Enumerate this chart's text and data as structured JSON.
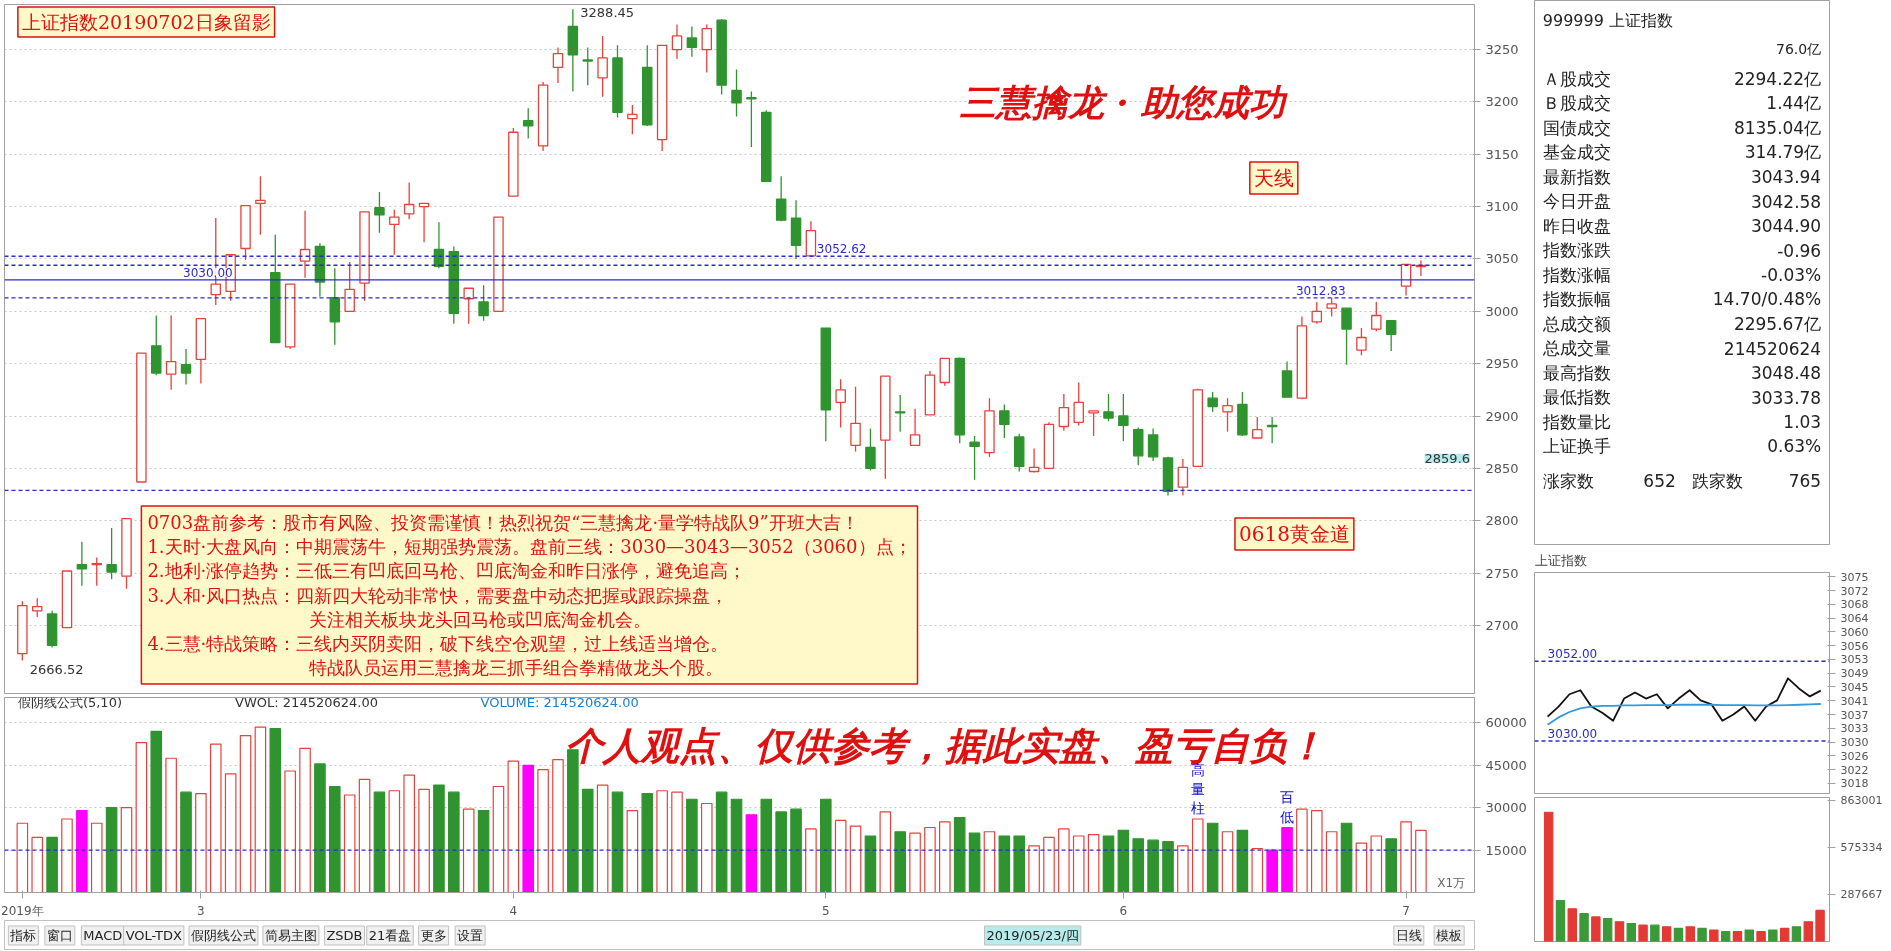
{
  "chart_data": [
    {
      "type": "candlestick",
      "categories": [
        null,
        null,
        null,
        null,
        null,
        null,
        null,
        null,
        null,
        null,
        null,
        null,
        null,
        null,
        null,
        null,
        null,
        null,
        null,
        null,
        null,
        null,
        null,
        null,
        null,
        null,
        null,
        null,
        null,
        null,
        null,
        null,
        null,
        null,
        null,
        null,
        null,
        null,
        null,
        null,
        null,
        null,
        null,
        null,
        null,
        null,
        null,
        null,
        null,
        null,
        null,
        null,
        null,
        null,
        null,
        null,
        null,
        null,
        null,
        null,
        null,
        null,
        null,
        null,
        null,
        null,
        null,
        null,
        null,
        null,
        null,
        null,
        null,
        null,
        null,
        null,
        null,
        null,
        null,
        null,
        null,
        null,
        null,
        null,
        null,
        null,
        null,
        null,
        null,
        null,
        null,
        null,
        null,
        null,
        null
      ],
      "ohlc": [
        [
          2673,
          2723,
          2666.52,
          2719
        ],
        [
          2714,
          2726,
          2708,
          2718
        ],
        [
          2711,
          2714,
          2679,
          2681
        ],
        [
          2698,
          2752,
          2698,
          2752
        ],
        [
          2758,
          2780,
          2738,
          2754
        ],
        [
          2758,
          2765,
          2738,
          2759
        ],
        [
          2758,
          2793,
          2744,
          2751
        ],
        [
          2747,
          2802,
          2735,
          2802
        ],
        [
          2837,
          2960,
          2837,
          2960
        ],
        [
          2967,
          2996,
          2939,
          2941
        ],
        [
          2940,
          2996,
          2925,
          2952
        ],
        [
          2949,
          2964,
          2930,
          2941
        ],
        [
          2954,
          2993,
          2931,
          2993
        ],
        [
          3016,
          3089,
          3006,
          3026
        ],
        [
          3019,
          3054,
          3010,
          3054
        ],
        [
          3060,
          3101,
          3049,
          3101
        ],
        [
          3103,
          3129,
          3073,
          3106
        ],
        [
          3037,
          3073,
          2970,
          2970
        ],
        [
          2966,
          3026,
          2964,
          3026
        ],
        [
          3048,
          3096,
          3032,
          3059
        ],
        [
          3062,
          3065,
          3014,
          3028
        ],
        [
          3013,
          3041,
          2968,
          2990
        ],
        [
          3000,
          3047,
          3000,
          3021
        ],
        [
          3027,
          3095,
          3010,
          3095
        ],
        [
          3099,
          3114,
          3075,
          3092
        ],
        [
          3083,
          3097,
          3054,
          3090
        ],
        [
          3093,
          3123,
          3088,
          3102
        ],
        [
          3100,
          3103,
          3066,
          3103
        ],
        [
          3059,
          3085,
          3041,
          3043
        ],
        [
          3057,
          3062,
          2988,
          2998
        ],
        [
          3012,
          3022,
          2988,
          3022
        ],
        [
          3009,
          3025,
          2991,
          2996
        ],
        [
          3000,
          3090,
          3000,
          3090
        ],
        [
          3110,
          3175,
          3110,
          3171
        ],
        [
          3182,
          3194,
          3165,
          3177
        ],
        [
          3158,
          3219,
          3153,
          3216
        ],
        [
          3233,
          3252,
          3218,
          3246
        ],
        [
          3272,
          3288.45,
          3210,
          3245
        ],
        [
          3240,
          3252,
          3216,
          3239
        ],
        [
          3223,
          3263,
          3205,
          3242
        ],
        [
          3242,
          3254,
          3185,
          3190
        ],
        [
          3184,
          3197,
          3169,
          3188
        ],
        [
          3233,
          3254,
          3177,
          3178
        ],
        [
          3164,
          3254,
          3153,
          3254
        ],
        [
          3250,
          3274,
          3241,
          3263
        ],
        [
          3261,
          3272,
          3243,
          3252
        ],
        [
          3250,
          3274,
          3228,
          3270
        ],
        [
          3278,
          3279,
          3207,
          3216
        ],
        [
          3211,
          3231,
          3186,
          3199
        ],
        [
          3204,
          3210,
          3157,
          3203
        ],
        [
          3190,
          3192,
          3124,
          3124
        ],
        [
          3107,
          3129,
          3086,
          3087
        ],
        [
          3089,
          3106,
          3050,
          3063
        ],
        [
          3053,
          3086,
          3052.62,
          3077
        ],
        [
          2984,
          2984,
          2876,
          2906
        ],
        [
          2913,
          2935,
          2889,
          2925
        ],
        [
          2872,
          2928,
          2866,
          2893
        ],
        [
          2870,
          2888,
          2848,
          2850
        ],
        [
          2877,
          2938,
          2840,
          2938
        ],
        [
          2904,
          2920,
          2885,
          2903
        ],
        [
          2872,
          2907,
          2872,
          2882
        ],
        [
          2901,
          2943,
          2901,
          2939
        ],
        [
          2932,
          2955,
          2929,
          2955
        ],
        [
          2955,
          2956,
          2874,
          2882
        ],
        [
          2875,
          2881,
          2839,
          2871
        ],
        [
          2865,
          2917,
          2861,
          2905
        ],
        [
          2905,
          2911,
          2879,
          2892
        ],
        [
          2880,
          2883,
          2847,
          2852
        ],
        [
          2847,
          2869,
          2846,
          2851
        ],
        [
          2850,
          2894,
          2850,
          2892
        ],
        [
          2890,
          2921,
          2886,
          2908
        ],
        [
          2894,
          2932,
          2891,
          2913
        ],
        [
          2903,
          2905,
          2881,
          2905
        ],
        [
          2904,
          2921,
          2895,
          2898
        ],
        [
          2900,
          2921,
          2876,
          2891
        ],
        [
          2887,
          2889,
          2853,
          2862
        ],
        [
          2882,
          2888,
          2857,
          2861
        ],
        [
          2860,
          2861,
          2824,
          2828
        ],
        [
          2832,
          2859,
          2824,
          2851
        ],
        [
          2852,
          2926,
          2852,
          2925
        ],
        [
          2917,
          2923,
          2904,
          2909
        ],
        [
          2904,
          2917,
          2885,
          2910
        ],
        [
          2911,
          2923,
          2881,
          2882
        ],
        [
          2879,
          2899,
          2879,
          2887
        ],
        [
          2891,
          2899,
          2874,
          2890
        ],
        [
          2943,
          2952,
          2918,
          2918
        ],
        [
          2917,
          2995,
          2916,
          2986
        ],
        [
          2990,
          3009,
          2988,
          3000
        ],
        [
          3003,
          3012.83,
          2995,
          3007
        ],
        [
          3003,
          3003,
          2949,
          2983
        ],
        [
          2963,
          2984,
          2958,
          2975
        ],
        [
          2983,
          3009,
          2981,
          2996
        ],
        [
          2991,
          2991,
          2962,
          2978
        ],
        [
          3024,
          3045,
          3015,
          3044.9
        ],
        [
          3042.58,
          3048.48,
          3033.78,
          3043.94
        ]
      ],
      "colors": [
        "#e8413c",
        "#e8413c",
        "#2f942f",
        "#e8413c",
        "#2f942f",
        "#e8413c",
        "#2f942f",
        "#e8413c",
        "#e8413c",
        "#2f942f",
        "#e8413c",
        "#2f942f",
        "#e8413c",
        "#e8413c",
        "#e8413c",
        "#e8413c",
        "#e8413c",
        "#2f942f",
        "#e8413c",
        "#e8413c",
        "#2f942f",
        "#2f942f",
        "#e8413c",
        "#e8413c",
        "#2f942f",
        "#e8413c",
        "#e8413c",
        "#e8413c",
        "#2f942f",
        "#2f942f",
        "#e8413c",
        "#2f942f",
        "#e8413c",
        "#e8413c",
        "#2f942f",
        "#e8413c",
        "#e8413c",
        "#2f942f",
        "#2f942f",
        "#e8413c",
        "#2f942f",
        "#e8413c",
        "#2f942f",
        "#e8413c",
        "#e8413c",
        "#2f942f",
        "#e8413c",
        "#2f942f",
        "#2f942f",
        "#2f942f",
        "#2f942f",
        "#2f942f",
        "#2f942f",
        "#e8413c",
        "#2f942f",
        "#e8413c",
        "#e8413c",
        "#2f942f",
        "#e8413c",
        "#2f942f",
        "#e8413c",
        "#e8413c",
        "#e8413c",
        "#2f942f",
        "#2f942f",
        "#e8413c",
        "#2f942f",
        "#2f942f",
        "#e8413c",
        "#e8413c",
        "#e8413c",
        "#e8413c",
        "#e8413c",
        "#2f942f",
        "#2f942f",
        "#2f942f",
        "#2f942f",
        "#2f942f",
        "#e8413c",
        "#e8413c",
        "#2f942f",
        "#e8413c",
        "#2f942f",
        "#e8413c",
        "#2f942f",
        "#2f942f",
        "#e8413c",
        "#e8413c",
        "#e8413c",
        "#2f942f",
        "#e8413c",
        "#e8413c",
        "#2f942f",
        "#e8413c",
        "#e8413c"
      ],
      "ylim": [
        2635,
        3293
      ],
      "yticks": [
        2700,
        2750,
        2800,
        2850,
        2900,
        2950,
        3000,
        3050,
        3100,
        3150,
        3200,
        3250
      ],
      "grid": "y",
      "tick_labels": "y",
      "ref_lines": [
        {
          "axis": "y",
          "value": 3030,
          "label": "3030.00",
          "color": "#2b2bd0",
          "line_style": "solid"
        },
        {
          "axis": "y",
          "value": 3052.62,
          "label": "3052.62",
          "color": "#2b2bd0",
          "line_style": "dashed"
        },
        {
          "axis": "y",
          "value": 3012.83,
          "label": "3012.83",
          "color": "#2b2bd0",
          "line_style": "dashed"
        },
        {
          "axis": "y",
          "value": 3043.94,
          "color": "#2b2bd0",
          "line_style": "dashed"
        },
        {
          "axis": "y",
          "value": 2829,
          "color": "#2b2bd0",
          "line_style": "dashed"
        }
      ],
      "annotations": [
        "上证指数20190702日象留影",
        "三慧擒龙 · 助您成功",
        "0703盘前参考：股市有风险、投资需谨慎！热烈祝贺“三慧擒龙·量学特战队9”开班大吉！",
        "1.天时·大盘风向：中期震荡牛，短期强势震荡。盘前三线：3030—3043—3052（3060）点；",
        "2.地利·涨停趋势：三低三有凹底回马枪、凹底淘金和昨日涨停，避免追高；",
        "3.人和·风口热点：四新四大轮动非常快，需要盘中动态把握或跟踪操盘，",
        "关注相关板块龙头回马枪或凹底淘金机会。",
        "4.三慧·特战策略：三线内买阴卖阳，破下线空仓观望，过上线适当增仓。",
        "特战队员运用三慧擒龙三抓手组合拳精做龙头个股。",
        "天线",
        "0618黄金道",
        "3288.45",
        "2666.52",
        "2859.6"
      ]
    },
    {
      "type": "bar",
      "categories": [
        "2019年",
        null,
        null,
        null,
        null,
        null,
        null,
        null,
        null,
        null,
        null,
        null,
        "3",
        null,
        null,
        null,
        null,
        null,
        null,
        null,
        null,
        null,
        null,
        null,
        null,
        null,
        null,
        null,
        null,
        null,
        null,
        null,
        null,
        "4",
        null,
        null,
        null,
        null,
        null,
        null,
        null,
        null,
        null,
        null,
        null,
        null,
        null,
        null,
        null,
        null,
        null,
        null,
        null,
        null,
        "5",
        null,
        null,
        null,
        null,
        null,
        null,
        null,
        null,
        null,
        null,
        null,
        null,
        null,
        null,
        null,
        null,
        null,
        null,
        null,
        "6",
        null,
        null,
        null,
        null,
        null,
        null,
        null,
        null,
        null,
        null,
        null,
        null,
        null,
        null,
        null,
        null,
        null,
        null,
        "7",
        null
      ],
      "values": [
        24500,
        19500,
        19500,
        26000,
        29000,
        24500,
        30000,
        30000,
        53000,
        57000,
        47500,
        35500,
        35000,
        52500,
        42000,
        55500,
        58500,
        58000,
        43000,
        51000,
        45500,
        37500,
        34500,
        40000,
        35500,
        36000,
        41500,
        36500,
        38000,
        35500,
        29500,
        29000,
        37500,
        46500,
        45000,
        43500,
        47000,
        50500,
        36500,
        38000,
        35500,
        29000,
        35000,
        36000,
        35500,
        33000,
        31500,
        35500,
        33000,
        27500,
        33000,
        28500,
        29500,
        22500,
        33000,
        25500,
        23500,
        20000,
        28500,
        21500,
        21000,
        23000,
        25000,
        26500,
        21000,
        21500,
        20000,
        20000,
        16500,
        19500,
        22500,
        20000,
        20500,
        20000,
        22000,
        19000,
        18500,
        18000,
        16500,
        26000,
        24500,
        21500,
        22000,
        15500,
        15000,
        23000,
        29500,
        29000,
        21500,
        24500,
        17500,
        20000,
        19000,
        25000,
        22000
      ],
      "colors": [
        "#e8413c",
        "#e8413c",
        "#2f942f",
        "#e8413c",
        "#ff00ff",
        "#e8413c",
        "#2f942f",
        "#e8413c",
        "#e8413c",
        "#2f942f",
        "#e8413c",
        "#2f942f",
        "#e8413c",
        "#e8413c",
        "#e8413c",
        "#e8413c",
        "#e8413c",
        "#2f942f",
        "#e8413c",
        "#e8413c",
        "#2f942f",
        "#2f942f",
        "#e8413c",
        "#e8413c",
        "#2f942f",
        "#e8413c",
        "#e8413c",
        "#e8413c",
        "#2f942f",
        "#2f942f",
        "#e8413c",
        "#2f942f",
        "#e8413c",
        "#e8413c",
        "#ff00ff",
        "#e8413c",
        "#e8413c",
        "#2f942f",
        "#2f942f",
        "#e8413c",
        "#2f942f",
        "#e8413c",
        "#2f942f",
        "#e8413c",
        "#e8413c",
        "#2f942f",
        "#e8413c",
        "#2f942f",
        "#2f942f",
        "#ff00ff",
        "#2f942f",
        "#2f942f",
        "#2f942f",
        "#e8413c",
        "#2f942f",
        "#e8413c",
        "#e8413c",
        "#2f942f",
        "#e8413c",
        "#2f942f",
        "#e8413c",
        "#e8413c",
        "#e8413c",
        "#2f942f",
        "#2f942f",
        "#e8413c",
        "#2f942f",
        "#2f942f",
        "#e8413c",
        "#e8413c",
        "#e8413c",
        "#e8413c",
        "#e8413c",
        "#2f942f",
        "#2f942f",
        "#2f942f",
        "#2f942f",
        "#2f942f",
        "#e8413c",
        "#e8413c",
        "#2f942f",
        "#e8413c",
        "#2f942f",
        "#e8413c",
        "#ff00ff",
        "#ff00ff",
        "#e8413c",
        "#e8413c",
        "#e8413c",
        "#2f942f",
        "#e8413c",
        "#e8413c",
        "#2f942f",
        "#e8413c",
        "#e8413c"
      ],
      "ylim": [
        0,
        69000
      ],
      "yticks": [
        15000,
        30000,
        45000,
        60000
      ],
      "grid": "y",
      "ref_lines": [
        {
          "axis": "y",
          "value": 15000,
          "color": "#2b2bd0",
          "line_style": "dashed"
        }
      ],
      "annotations": [
        "假阴线公式(5,10)",
        "VWOL: 214520624.00",
        "VOLUME: 214520624.00",
        "个人观点、仅供参考，据此实盘、盈亏自负！",
        "高量柱",
        "百低",
        "X1万"
      ]
    },
    {
      "type": "other",
      "annotations": [
        "2019/05/23/四",
        "日线",
        "模板",
        "指标",
        "窗口",
        "MACD",
        "VOL-TDX",
        "假阴线公式",
        "简易主图",
        "ZSDB",
        "21看盘",
        "更多",
        "设置"
      ]
    },
    {
      "type": "other",
      "annotations": [
        "999999 上证指数",
        "76.0亿",
        "Ａ股成交",
        "2294.22亿",
        "Ｂ股成交",
        "1.44亿",
        "国债成交",
        "8135.04亿",
        "基金成交",
        "314.79亿",
        "最新指数",
        "3043.94",
        "今日开盘",
        "3042.58",
        "昨日收盘",
        "3044.90",
        "指数涨跌",
        "-0.96",
        "指数涨幅",
        "-0.03%",
        "指数振幅",
        "14.70/0.48%",
        "总成交额",
        "2295.67亿",
        "总成交量",
        "214520624",
        "最高指数",
        "3048.48",
        "最低指数",
        "3033.78",
        "指数量比",
        "1.03",
        "上证换手",
        "0.63%",
        "涨家数",
        "652",
        "跌家数",
        "765"
      ]
    },
    {
      "type": "line",
      "title": "上证指数",
      "categories": [
        null,
        null,
        null,
        null,
        null,
        null,
        null,
        null,
        null,
        null,
        null,
        null,
        null,
        null,
        null,
        null,
        null,
        null,
        null,
        null,
        null,
        null,
        null,
        null,
        null,
        null
      ],
      "series": [
        {
          "color": "#111111",
          "values": [
            3036.7,
            3039.5,
            3042.9,
            3044,
            3039.5,
            3037.8,
            3035.6,
            3041.7,
            3043.4,
            3041.7,
            3042.9,
            3039,
            3041.7,
            3044,
            3041.2,
            3040.1,
            3035.6,
            3037.3,
            3039.5,
            3035.6,
            3039.5,
            3041.2,
            3047.3,
            3044.5,
            3042.3,
            3043.9
          ]
        },
        {
          "color": "#3399dd",
          "values": [
            3034.5,
            3036.5,
            3038,
            3039,
            3039.5,
            3039.7,
            3039.7,
            3039.8,
            3039.8,
            3039.9,
            3039.9,
            3039.9,
            3040,
            3040,
            3040,
            3040,
            3039.9,
            3039.9,
            3039.9,
            3039.8,
            3039.8,
            3039.8,
            3039.9,
            3040,
            3040.1,
            3040.2
          ]
        }
      ],
      "ylim": [
        3015.5,
        3076.5
      ],
      "yticks": [
        {
          "value": 3075.3,
          "label": "3075"
        },
        {
          "value": 3071.5,
          "label": "3072"
        },
        {
          "value": 3067.7,
          "label": "3068"
        },
        {
          "value": 3063.9,
          "label": "3064"
        },
        {
          "value": 3060.1,
          "label": "3060"
        },
        {
          "value": 3056.3,
          "label": "3056"
        },
        {
          "value": 3052.5,
          "label": "3053"
        },
        {
          "value": 3048.7,
          "label": "3049"
        },
        {
          "value": 3044.9,
          "label": "3045"
        },
        {
          "value": 3041.1,
          "label": "3041"
        },
        {
          "value": 3037.3,
          "label": "3037"
        },
        {
          "value": 3033.5,
          "label": "3033"
        },
        {
          "value": 3029.7,
          "label": "3030"
        },
        {
          "value": 3025.9,
          "label": "3026"
        },
        {
          "value": 3022.1,
          "label": "3022"
        },
        {
          "value": 3018.3,
          "label": "3018"
        }
      ],
      "tick_labels": "y",
      "ref_lines": [
        {
          "axis": "y",
          "value": 3052,
          "label": "3052.00",
          "color": "#2b2bd0",
          "line_style": "dashed"
        },
        {
          "axis": "y",
          "value": 3030,
          "label": "3030.00",
          "color": "#2b2bd0",
          "line_style": "dashed"
        }
      ]
    },
    {
      "type": "bar",
      "categories": [
        null,
        null,
        null,
        null,
        null,
        null,
        null,
        null,
        null,
        null,
        null,
        null,
        null,
        null,
        null,
        null,
        null,
        null,
        null,
        null,
        null,
        null,
        null,
        null
      ],
      "values": [
        790000,
        250000,
        200000,
        170000,
        150000,
        140000,
        120000,
        110000,
        100000,
        100000,
        90000,
        80000,
        90000,
        80000,
        70000,
        60000,
        60000,
        70000,
        60000,
        70000,
        80000,
        90000,
        120000,
        190000
      ],
      "colors": [
        "#e53935",
        "#3a9a3a",
        "#e53935",
        "#3a9a3a",
        "#e53935",
        "#3a9a3a",
        "#e53935",
        "#3a9a3a",
        "#e53935",
        "#3a9a3a",
        "#e53935",
        "#3a9a3a",
        "#e53935",
        "#3a9a3a",
        "#e53935",
        "#3a9a3a",
        "#e53935",
        "#3a9a3a",
        "#e53935",
        "#3a9a3a",
        "#e53935",
        "#3a9a3a",
        "#e53935",
        "#e53935"
      ],
      "ylim": [
        0,
        880000
      ],
      "yticks": [
        {
          "value": 287667,
          "label": "287667"
        },
        {
          "value": 575334,
          "label": "575334"
        },
        {
          "value": 863001,
          "label": "863001"
        }
      ],
      "tick_labels": "y"
    }
  ]
}
